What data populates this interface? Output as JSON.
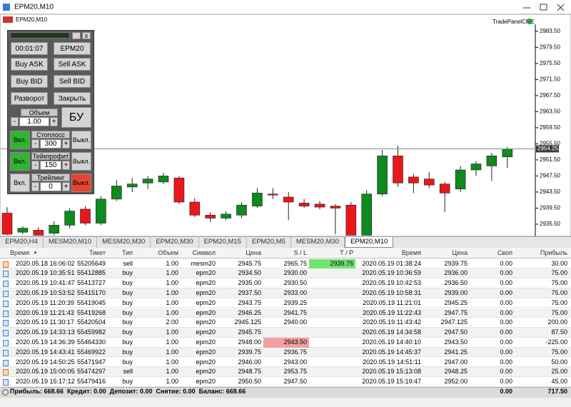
{
  "window_title": "EPM20,M10",
  "chart_window_title": "EPM20,M10",
  "indicator_label": "TradePanelCME",
  "chart_data": {
    "type": "candlestick",
    "open": [
      2938.25,
      2933.5,
      2934.0,
      2933.25,
      2935.25,
      2939.25,
      2935.75,
      2941.75,
      2944.75,
      2945.75,
      2946.0,
      2947.0,
      2941.0,
      2937.75,
      2937.0,
      2937.75,
      2940.0,
      2943.0,
      2942.25,
      2940.75,
      2940.5,
      2940.0,
      2940.25,
      2932.75,
      2943.0,
      2952.5,
      2947.25,
      2946.75,
      2945.5,
      2944.25,
      2949.0,
      2950.0,
      2952.25
    ],
    "high": [
      2939.75,
      2935.0,
      2934.75,
      2936.25,
      2939.5,
      2940.0,
      2942.5,
      2946.5,
      2947.0,
      2947.5,
      2948.25,
      2947.5,
      2942.0,
      2938.5,
      2938.75,
      2941.0,
      2944.5,
      2944.5,
      2943.5,
      2941.75,
      2941.25,
      2940.5,
      2941.0,
      2944.0,
      2954.0,
      2955.0,
      2948.0,
      2948.5,
      2946.0,
      2950.0,
      2951.25,
      2953.25,
      2954.75
    ],
    "low": [
      2932.75,
      2933.0,
      2932.75,
      2932.75,
      2934.5,
      2935.25,
      2935.25,
      2941.25,
      2943.5,
      2944.25,
      2945.5,
      2940.5,
      2937.25,
      2936.0,
      2936.5,
      2937.0,
      2939.5,
      2941.75,
      2936.5,
      2939.5,
      2939.25,
      2933.0,
      2932.75,
      2932.75,
      2942.5,
      2944.75,
      2943.25,
      2944.5,
      2938.5,
      2943.5,
      2947.5,
      2946.25,
      2949.5
    ],
    "close": [
      2933.0,
      2934.5,
      2932.75,
      2935.25,
      2938.75,
      2935.75,
      2941.75,
      2945.0,
      2945.5,
      2946.75,
      2947.5,
      2941.0,
      2937.75,
      2937.0,
      2938.0,
      2940.25,
      2943.25,
      2942.75,
      2941.0,
      2940.0,
      2939.75,
      2939.5,
      2932.75,
      2943.0,
      2952.5,
      2945.75,
      2945.75,
      2945.25,
      2943.25,
      2949.0,
      2950.5,
      2952.5,
      2954.25
    ],
    "up_color": "#0f8a1e",
    "down_color": "#e8171c",
    "ylim": [
      2932.65,
      2985.25
    ],
    "yticks": [
      {
        "value": 2983.5,
        "label": "2983.50"
      },
      {
        "value": 2979.5,
        "label": "2979.50"
      },
      {
        "value": 2975.5,
        "label": "2975.50"
      },
      {
        "value": 2971.5,
        "label": "2971.50"
      },
      {
        "value": 2967.5,
        "label": "2967.50"
      },
      {
        "value": 2963.5,
        "label": "2963.50"
      },
      {
        "value": 2959.5,
        "label": "2959.50"
      },
      {
        "value": 2955.5,
        "label": "2955.50"
      },
      {
        "value": 2951.5,
        "label": "2951.50"
      },
      {
        "value": 2947.5,
        "label": "2947.50"
      },
      {
        "value": 2943.5,
        "label": "2943.50"
      },
      {
        "value": 2939.5,
        "label": "2939.50"
      },
      {
        "value": 2935.5,
        "label": "2935.50"
      }
    ],
    "current_price": 2954.25
  },
  "trade_panel": {
    "close_button": "x",
    "timer": "00:01:07",
    "symbol": "EPM20",
    "buy_ask": "Buy ASK",
    "sell_ask": "Sell ASK",
    "buy_bid": "Buy BID",
    "sell_bid": "Sell BID",
    "reverse": "Разворот",
    "close": "Закрыть",
    "volume": {
      "label": "Объем",
      "minus": "-",
      "value": "1.00",
      "plus": "+"
    },
    "breakeven": "БУ",
    "stoploss": {
      "on": "Вкл.",
      "label": "Стоплосс",
      "minus": "-",
      "value": "300",
      "plus": "+",
      "off": "Выкл.",
      "enabled": true
    },
    "takeprofit": {
      "on": "Вкл.",
      "label": "Тейкпрофит",
      "minus": "-",
      "value": "150",
      "plus": "+",
      "off": "Выкл.",
      "enabled": true
    },
    "trailing": {
      "on": "Вкл.",
      "label": "Трейлинг",
      "minus": "-",
      "value": "0",
      "plus": "+",
      "off": "Выкл.",
      "enabled": false
    }
  },
  "tabs": [
    {
      "label": "EPM20,H4"
    },
    {
      "label": "MESM20,M10"
    },
    {
      "label": "MESM20,M30"
    },
    {
      "label": "EPM20,M30"
    },
    {
      "label": "EPM20,M15"
    },
    {
      "label": "EPM20,M5"
    },
    {
      "label": "MESM20,M30"
    },
    {
      "label": "EPM20,M10",
      "active": true
    }
  ],
  "table": {
    "columns": [
      "Время",
      "Тикет",
      "Тип",
      "Объем",
      "Символ",
      "Цена",
      "S / L",
      "T / P",
      "Время",
      "Цена",
      "Своп",
      "Прибыль"
    ],
    "rows": [
      [
        "2020.05.18 16:06:02",
        "55205649",
        "sell",
        "1.00",
        "mesm20",
        "2945.75",
        "2965.75",
        "2939.75",
        "2020.05.19 01:38:24",
        "2939.75",
        "0.00",
        "30.00"
      ],
      [
        "2020.05.19 10:35:51",
        "55412885",
        "buy",
        "1.00",
        "epm20",
        "2934.50",
        "2930.00",
        null,
        "2020.05.19 10:36:59",
        "2936.00",
        "0.00",
        "75.00"
      ],
      [
        "2020.05.19 10:41:47",
        "55413727",
        "buy",
        "1.00",
        "epm20",
        "2935.00",
        "2930.50",
        null,
        "2020.05.19 10:42:53",
        "2936.50",
        "0.00",
        "75.00"
      ],
      [
        "2020.05.19 10:53:52",
        "55415170",
        "buy",
        "1.00",
        "epm20",
        "2937.50",
        "2933.00",
        null,
        "2020.05.19 10:58:31",
        "2939.00",
        "0.00",
        "75.00"
      ],
      [
        "2020.05.19 11:20:39",
        "55419045",
        "buy",
        "1.00",
        "epm20",
        "2943.75",
        "2939.25",
        null,
        "2020.05.19 11:21:01",
        "2945.25",
        "0.00",
        "75.00"
      ],
      [
        "2020.05.19 11:21:43",
        "55419268",
        "buy",
        "1.00",
        "epm20",
        "2946.25",
        "2941.75",
        null,
        "2020.05.19 11:22:43",
        "2947.75",
        "0.00",
        "75.00"
      ],
      [
        "2020.05.19 11:30:17",
        "55420504",
        "buy",
        "2.00",
        "epm20",
        "2945.125",
        "2940.00",
        null,
        "2020.05.19 11:43:42",
        "2947.125",
        "0.00",
        "200.00"
      ],
      [
        "2020.05.19 14:33:13",
        "55459982",
        "buy",
        "1.00",
        "epm20",
        "2945.75",
        null,
        null,
        "2020.05.19 14:34:58",
        "2947.50",
        "0.00",
        "87.50"
      ],
      [
        "2020.05.19 14:36:39",
        "55464330",
        "buy",
        "1.00",
        "epm20",
        "2948.00",
        "2943.50",
        null,
        "2020.05.19 14:40:10",
        "2943.50",
        "0.00",
        "-225.00"
      ],
      [
        "2020.05.19 14:43:41",
        "55469922",
        "buy",
        "1.00",
        "epm20",
        "2939.75",
        "2936.75",
        null,
        "2020.05.19 14:45:37",
        "2941.25",
        "0.00",
        "75.00"
      ],
      [
        "2020.05.19 14:50:25",
        "55471947",
        "buy",
        "1.00",
        "epm20",
        "2946.00",
        "2943.00",
        null,
        "2020.05.19 14:51:11",
        "2947.00",
        "0.00",
        "50.00"
      ],
      [
        "2020.05.19 15:00:05",
        "55474297",
        "sell",
        "1.00",
        "epm20",
        "2948.75",
        "2953.75",
        null,
        "2020.05.19 15:13:08",
        "2948.25",
        "0.00",
        "25.00"
      ],
      [
        "2020.05.19 15:17:12",
        "55479416",
        "buy",
        "1.00",
        "epm20",
        "2950.50",
        "2947.50",
        null,
        "2020.05.19 15:19:47",
        "2952.00",
        "0.00",
        "45.00"
      ]
    ],
    "highlights": [
      {
        "row": 0,
        "col": 7,
        "color": "#6fe46f"
      },
      {
        "row": 8,
        "col": 6,
        "color": "#f4a0a0"
      }
    ]
  },
  "footer": {
    "summary": "Прибыль: 668.66  Кредит: 0.00  Депозит: 0.00  Снятие: 0.00  Баланс: 668.66",
    "swap": "0.00",
    "profit": "717.50"
  }
}
